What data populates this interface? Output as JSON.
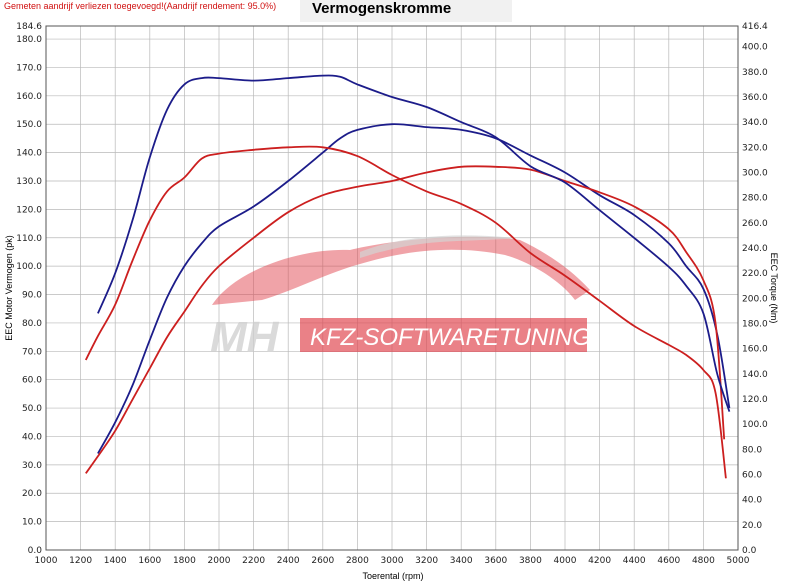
{
  "header": {
    "notice": "Gemeten aandrijf verliezen toegevoegd!(Aandrijf rendement: 95.0%)",
    "title": "Vermogenskromme"
  },
  "watermark": {
    "brand_left": "MH",
    "brand_right": "KFZ-SOFTWARETUNING",
    "accent": "#e0464f"
  },
  "chart_data": {
    "type": "line",
    "title": "Vermogenskromme",
    "xlabel": "Toerental (rpm)",
    "ylabel_left": "EEC Motor Vermogen (pk)",
    "ylabel_right": "EEC Torque (Nm)",
    "xlim": [
      1000,
      5000
    ],
    "ylim_left": [
      0,
      184.6
    ],
    "ylim_right": [
      0,
      416.4
    ],
    "x_ticks": [
      "1000",
      "1200",
      "1400",
      "1600",
      "1800",
      "2000",
      "2200",
      "2400",
      "2600",
      "2800",
      "3000",
      "3200",
      "3400",
      "3600",
      "3800",
      "4000",
      "4200",
      "4400",
      "4600",
      "4800",
      "5000"
    ],
    "y_left_ticks": [
      "0.0",
      "10.0",
      "20.0",
      "30.0",
      "40.0",
      "50.0",
      "60.0",
      "70.0",
      "80.0",
      "90.0",
      "100.0",
      "110.0",
      "120.0",
      "130.0",
      "140.0",
      "150.0",
      "160.0",
      "170.0",
      "180.0"
    ],
    "y_left_top_label": "184.6",
    "y_right_ticks": [
      "0.0",
      "20.0",
      "40.0",
      "60.0",
      "80.0",
      "100.0",
      "120.0",
      "140.0",
      "160.0",
      "180.0",
      "200.0",
      "220.0",
      "240.0",
      "260.0",
      "280.0",
      "300.0",
      "320.0",
      "340.0",
      "360.0",
      "380.0",
      "400.0"
    ],
    "y_right_top_label": "416.4",
    "grid": true,
    "colors": {
      "tuned": "#1c1c8a",
      "stock": "#cc1f1f"
    },
    "series": [
      {
        "axis": "left",
        "color": "#1c1c8a",
        "x": [
          1300,
          1400,
          1500,
          1600,
          1700,
          1800,
          1900,
          2000,
          2200,
          2400,
          2600,
          2700,
          2800,
          3000,
          3200,
          3400,
          3600,
          3800,
          4000,
          4200,
          4400,
          4600,
          4700,
          4800,
          4880,
          4950
        ],
        "values": [
          34,
          45,
          58,
          74,
          89,
          100,
          108,
          114,
          121,
          130,
          140,
          145,
          148,
          150,
          149,
          148,
          145,
          139,
          133,
          125,
          118,
          108,
          100,
          92,
          76,
          50
        ]
      },
      {
        "axis": "left",
        "color": "#cc1f1f",
        "x": [
          1230,
          1300,
          1400,
          1500,
          1600,
          1700,
          1800,
          1900,
          2000,
          2200,
          2400,
          2600,
          2800,
          3000,
          3200,
          3400,
          3600,
          3800,
          4000,
          4200,
          4400,
          4600,
          4700,
          4800,
          4870,
          4920
        ],
        "values": [
          27,
          33,
          42,
          53,
          64,
          75,
          84,
          93,
          100,
          110,
          119,
          125,
          128,
          130,
          133,
          135,
          135,
          134,
          130,
          126,
          121,
          113,
          105,
          95,
          80,
          39
        ]
      },
      {
        "axis": "right",
        "color": "#1c1c8a",
        "x": [
          1300,
          1400,
          1500,
          1600,
          1700,
          1800,
          1900,
          2000,
          2200,
          2400,
          2600,
          2700,
          2800,
          3000,
          3200,
          3400,
          3600,
          3800,
          4000,
          4200,
          4400,
          4600,
          4700,
          4800,
          4880,
          4950
        ],
        "values": [
          188,
          220,
          262,
          312,
          350,
          370,
          375,
          375,
          373,
          375,
          377,
          376,
          370,
          360,
          352,
          340,
          328,
          305,
          292,
          270,
          248,
          225,
          210,
          188,
          140,
          110
        ]
      },
      {
        "axis": "right",
        "color": "#cc1f1f",
        "x": [
          1230,
          1300,
          1400,
          1500,
          1600,
          1700,
          1800,
          1900,
          2000,
          2200,
          2400,
          2600,
          2800,
          3000,
          3200,
          3400,
          3600,
          3800,
          4000,
          4200,
          4400,
          4600,
          4700,
          4800,
          4870,
          4930
        ],
        "values": [
          151,
          170,
          195,
          230,
          262,
          285,
          296,
          311,
          315,
          318,
          320,
          320,
          313,
          298,
          285,
          275,
          260,
          236,
          218,
          198,
          178,
          163,
          155,
          143,
          125,
          57
        ]
      }
    ]
  }
}
